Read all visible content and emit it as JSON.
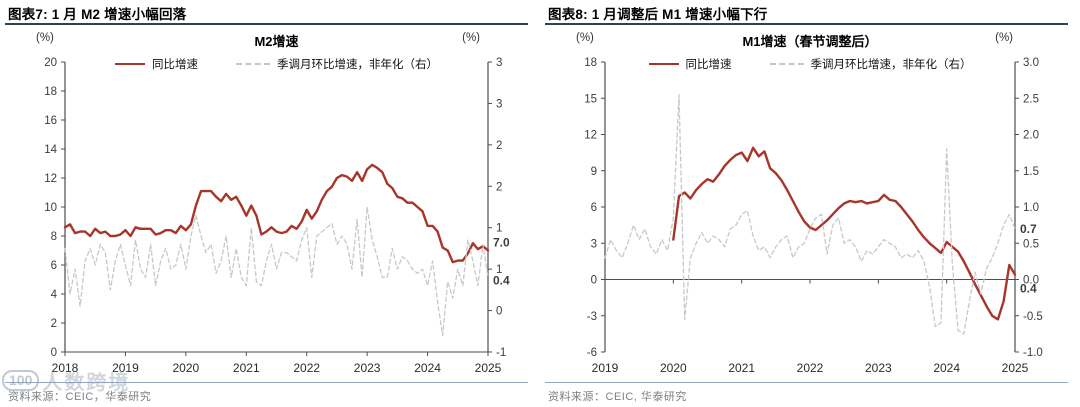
{
  "colors": {
    "line_red": "#A8352A",
    "line_gray": "#C8C8C8",
    "end_label_red": "#A8352A",
    "end_label_gray": "#AFAFAF",
    "axis": "#4D4D4D",
    "header_rule": "#2F4358",
    "footer_rule": "#90A8C0",
    "source_text": "#7F7F7F"
  },
  "panels": [
    {
      "header": "图表7:  1 月 M2 增速小幅回落",
      "source": "资料来源：CEIC，华泰研究",
      "watermark_logo": "100",
      "watermark_text": "人数跨境"
    },
    {
      "header": "图表8:  1 月调整后 M1 增速小幅下行",
      "source": "资料来源：CEIC, 华泰研究"
    }
  ],
  "chart_data": [
    {
      "type": "line",
      "title": "M2增速",
      "left_unit": "(%)",
      "right_unit": "(%)",
      "x_labels": [
        "2018",
        "2019",
        "2020",
        "2021",
        "2022",
        "2023",
        "2024",
        "2025"
      ],
      "left_axis": {
        "min": 0,
        "max": 20,
        "labels": [
          "20",
          "18",
          "16",
          "14",
          "12",
          "10",
          "8",
          "6",
          "4",
          "2",
          "0"
        ]
      },
      "right_axis": {
        "min": -0.5,
        "max": 3,
        "labels": [
          "3",
          "3",
          "2",
          "2",
          "1",
          "1",
          "0",
          "-1"
        ]
      },
      "grid": false,
      "legend_position": "top",
      "series": [
        {
          "label": "同比增速",
          "axis": "left",
          "color": "#A8352A",
          "width": 2.4,
          "dash": null,
          "start_month": 0,
          "end_label": "7.0",
          "end_label_color": "#A8352A",
          "end_label_dy": -4,
          "values": [
            8.6,
            8.8,
            8.2,
            8.3,
            8.3,
            8.0,
            8.5,
            8.2,
            8.3,
            8.0,
            8.0,
            8.1,
            8.4,
            8.0,
            8.6,
            8.5,
            8.5,
            8.5,
            8.1,
            8.2,
            8.4,
            8.4,
            8.2,
            8.7,
            8.4,
            8.8,
            10.1,
            11.1,
            11.1,
            11.1,
            10.7,
            10.4,
            10.9,
            10.5,
            10.7,
            10.1,
            9.4,
            10.1,
            9.4,
            8.1,
            8.3,
            8.6,
            8.3,
            8.2,
            8.3,
            8.7,
            8.5,
            9.0,
            9.8,
            9.2,
            9.7,
            10.5,
            11.1,
            11.4,
            12.0,
            12.2,
            12.1,
            11.8,
            12.4,
            11.8,
            12.6,
            12.9,
            12.7,
            12.4,
            11.6,
            11.3,
            10.7,
            10.6,
            10.3,
            10.3,
            10.0,
            9.7,
            8.7,
            8.7,
            8.3,
            7.2,
            7.0,
            6.2,
            6.3,
            6.3,
            6.8,
            7.5,
            7.1,
            7.3,
            7.0
          ]
        },
        {
          "label": "季调月环比增速，非年化（右）",
          "axis": "right",
          "color": "#C8C8C8",
          "width": 1.3,
          "dash": "4 3",
          "start_month": 0,
          "end_label": "0.4",
          "end_label_color": "#AFAFAF",
          "end_label_dy": 7,
          "values": [
            0.75,
            0.2,
            0.5,
            0.05,
            0.6,
            0.75,
            0.55,
            0.8,
            0.7,
            0.25,
            0.6,
            0.8,
            0.55,
            0.3,
            0.85,
            0.5,
            0.4,
            0.8,
            0.3,
            0.6,
            0.75,
            0.5,
            0.55,
            0.8,
            0.5,
            0.9,
            1.15,
            0.9,
            0.7,
            0.8,
            0.45,
            0.6,
            0.9,
            0.4,
            0.75,
            0.4,
            0.3,
            1.0,
            0.35,
            0.3,
            0.6,
            0.8,
            0.5,
            0.7,
            0.7,
            0.65,
            0.6,
            0.85,
            1.0,
            0.4,
            0.9,
            0.95,
            1.0,
            1.05,
            0.8,
            0.9,
            0.8,
            0.5,
            1.1,
            0.4,
            1.25,
            0.85,
            0.65,
            0.4,
            0.4,
            0.75,
            0.5,
            0.65,
            0.6,
            0.5,
            0.45,
            0.5,
            0.3,
            0.6,
            0.1,
            -0.3,
            0.35,
            0.15,
            0.5,
            0.3,
            0.85,
            0.6,
            0.3,
            0.8,
            0.4
          ]
        }
      ]
    },
    {
      "type": "line",
      "title": "M1增速（春节调整后）",
      "left_unit": "(%)",
      "right_unit": "(%)",
      "x_labels": [
        "2019",
        "2020",
        "2021",
        "2022",
        "2023",
        "2024",
        "2025"
      ],
      "left_axis": {
        "min": -6,
        "max": 18,
        "labels": [
          "18",
          "15",
          "12",
          "9",
          "6",
          "3",
          "0",
          "-3",
          "-6"
        ]
      },
      "right_axis": {
        "min": -1.0,
        "max": 3.0,
        "labels": [
          "3.0",
          "2.5",
          "2.0",
          "1.5",
          "1.0",
          "0.5",
          "0.0",
          "-0.5",
          "-1.0"
        ]
      },
      "grid": false,
      "legend_position": "top",
      "series": [
        {
          "label": "同比增速",
          "axis": "left",
          "color": "#A8352A",
          "width": 2.4,
          "dash": null,
          "start_month": 12,
          "end_label": "0.4",
          "end_label_color": "#A8352A",
          "end_label_dy": 18,
          "values": [
            3.3,
            6.9,
            7.2,
            6.7,
            7.4,
            7.9,
            8.3,
            8.1,
            8.7,
            9.4,
            9.9,
            10.3,
            10.5,
            9.8,
            10.9,
            10.2,
            10.6,
            9.2,
            8.8,
            8.2,
            7.4,
            6.5,
            5.6,
            4.8,
            4.3,
            4.1,
            4.5,
            4.9,
            5.4,
            5.9,
            6.3,
            6.5,
            6.4,
            6.5,
            6.3,
            6.4,
            6.5,
            7.0,
            6.6,
            6.5,
            6.0,
            5.4,
            4.8,
            4.1,
            3.5,
            3.0,
            2.6,
            2.2,
            3.1,
            2.7,
            2.3,
            1.5,
            0.6,
            -0.4,
            -1.3,
            -2.2,
            -3.0,
            -3.3,
            -1.8,
            1.2,
            0.4
          ]
        },
        {
          "label": "季调月环比增速，非年化（右）",
          "axis": "right",
          "color": "#C8C8C8",
          "width": 1.3,
          "dash": "4 3",
          "start_month": 0,
          "end_label": "0.7",
          "end_label_color": "#AFAFAF",
          "end_label_dy": 4,
          "values": [
            0.3,
            0.55,
            0.4,
            0.3,
            0.5,
            0.75,
            0.55,
            0.7,
            0.45,
            0.35,
            0.55,
            0.4,
            0.85,
            2.55,
            -0.55,
            0.3,
            0.5,
            0.65,
            0.5,
            0.6,
            0.55,
            0.45,
            0.7,
            0.75,
            0.9,
            0.95,
            0.6,
            0.4,
            0.45,
            0.3,
            0.45,
            0.55,
            0.6,
            0.3,
            0.45,
            0.5,
            0.7,
            0.85,
            0.9,
            0.35,
            0.75,
            0.85,
            0.5,
            0.55,
            0.45,
            0.25,
            0.4,
            0.35,
            0.45,
            0.55,
            0.5,
            0.45,
            0.3,
            0.35,
            0.3,
            0.4,
            0.25,
            -0.1,
            -0.65,
            -0.6,
            1.8,
            0.2,
            -0.7,
            -0.75,
            -0.3,
            0.1,
            -0.2,
            0.15,
            0.3,
            0.5,
            0.75,
            0.9,
            0.7
          ]
        }
      ]
    }
  ]
}
